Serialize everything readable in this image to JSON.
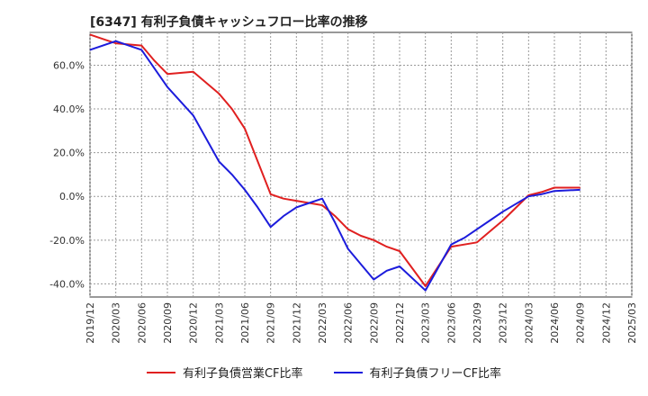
{
  "chart_data": {
    "type": "line",
    "title": "[6347]  有利子負債キャッシュフロー比率の推移",
    "x": [
      "2019/12",
      "2020/03",
      "2020/06",
      "2020/09",
      "2020/12",
      "2021/03",
      "2021/06",
      "2021/09",
      "2021/12",
      "2022/03",
      "2022/06",
      "2022/09",
      "2022/12",
      "2023/03",
      "2023/06",
      "2023/09",
      "2023/12",
      "2024/03",
      "2024/06",
      "2024/09",
      "2024/12",
      "2025/03"
    ],
    "ylim": [
      -46,
      75
    ],
    "yticks": [
      60,
      40,
      20,
      0,
      -20,
      -40
    ],
    "ytick_labels": [
      "60.0%",
      "40.0%",
      "20.0%",
      "0.0%",
      "-20.0%",
      "-40.0%"
    ],
    "grid": true,
    "legend_position": "bottom",
    "series": [
      {
        "name": "有利子負債営業CF比率",
        "color": "#e02020",
        "points": [
          [
            0,
            74
          ],
          [
            0.5,
            72
          ],
          [
            1,
            70
          ],
          [
            2,
            69
          ],
          [
            2.5,
            62
          ],
          [
            3,
            56
          ],
          [
            4,
            57
          ],
          [
            4.5,
            52
          ],
          [
            5,
            47
          ],
          [
            5.5,
            40
          ],
          [
            6,
            31
          ],
          [
            7,
            1
          ],
          [
            7.5,
            -1
          ],
          [
            8,
            -2
          ],
          [
            9,
            -4
          ],
          [
            9.5,
            -9
          ],
          [
            10,
            -15
          ],
          [
            10.5,
            -18
          ],
          [
            11,
            -20
          ],
          [
            11.5,
            -23
          ],
          [
            12,
            -25
          ],
          [
            13,
            -41
          ],
          [
            14,
            -23
          ],
          [
            15,
            -21
          ],
          [
            15.5,
            -16
          ],
          [
            16,
            -11
          ],
          [
            17,
            0.5
          ],
          [
            17.5,
            2
          ],
          [
            18,
            4
          ],
          [
            19,
            4
          ]
        ]
      },
      {
        "name": "有利子負債フリーCF比率",
        "color": "#1c1cdc",
        "points": [
          [
            0,
            67
          ],
          [
            1,
            71
          ],
          [
            2,
            67
          ],
          [
            3,
            50
          ],
          [
            4,
            37
          ],
          [
            5,
            16
          ],
          [
            5.5,
            10
          ],
          [
            6,
            3
          ],
          [
            6.5,
            -5
          ],
          [
            7,
            -14
          ],
          [
            7.5,
            -9
          ],
          [
            8,
            -5
          ],
          [
            8.5,
            -3
          ],
          [
            9,
            -1
          ],
          [
            9.5,
            -12
          ],
          [
            10,
            -24
          ],
          [
            10.5,
            -31
          ],
          [
            11,
            -38
          ],
          [
            11.5,
            -34
          ],
          [
            12,
            -32
          ],
          [
            13,
            -43
          ],
          [
            14,
            -22
          ],
          [
            14.5,
            -19
          ],
          [
            15,
            -15
          ],
          [
            15.5,
            -11
          ],
          [
            16,
            -7
          ],
          [
            17,
            0
          ],
          [
            17.5,
            1
          ],
          [
            18,
            2.5
          ],
          [
            19,
            3
          ]
        ]
      }
    ]
  }
}
